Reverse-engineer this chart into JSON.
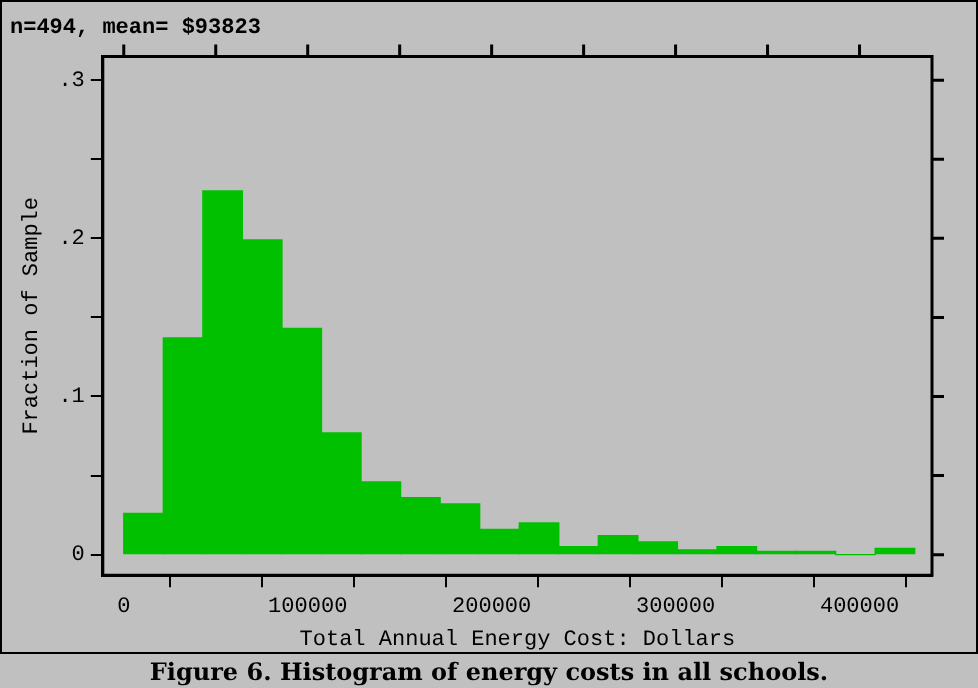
{
  "chart_data": {
    "type": "histogram",
    "title": "n=494, mean= $93823",
    "xlabel": "Total Annual Energy Cost: Dollars",
    "ylabel": "Fraction of Sample",
    "annotations": [
      "Figure 6. Histogram of energy costs in all schools."
    ],
    "bins": [
      0,
      21500,
      43000,
      64500,
      86000,
      107500,
      129000,
      150500,
      172000,
      193500,
      215000,
      236500,
      258000,
      279500,
      301000,
      322500,
      344000,
      365500,
      387000,
      408500,
      430000
    ],
    "values": [
      0.026,
      0.137,
      0.23,
      0.199,
      0.143,
      0.077,
      0.046,
      0.036,
      0.032,
      0.016,
      0.02,
      0.005,
      0.012,
      0.008,
      0.003,
      0.005,
      0.002,
      0.002,
      0,
      0.004
    ],
    "color": "#00c000",
    "xlim": [
      -11400,
      439400
    ],
    "xticks": [
      0,
      {
        "value": 50000,
        "label": null
      },
      100000,
      {
        "value": 150000,
        "label": null
      },
      200000,
      {
        "value": 250000,
        "label": null
      },
      300000,
      {
        "value": 350000,
        "label": null
      },
      400000
    ],
    "ylim": [
      -0.013,
      0.315
    ],
    "yticks": [
      {
        "value": 0,
        "label": "0"
      },
      {
        "value": 0.05,
        "label": null
      },
      {
        "value": 0.1,
        "label": ".1"
      },
      {
        "value": 0.15,
        "label": null
      },
      {
        "value": 0.2,
        "label": ".2"
      },
      {
        "value": 0.25,
        "label": null
      },
      {
        "value": 0.3,
        "label": ".3"
      }
    ],
    "grid": false,
    "legend": false
  }
}
